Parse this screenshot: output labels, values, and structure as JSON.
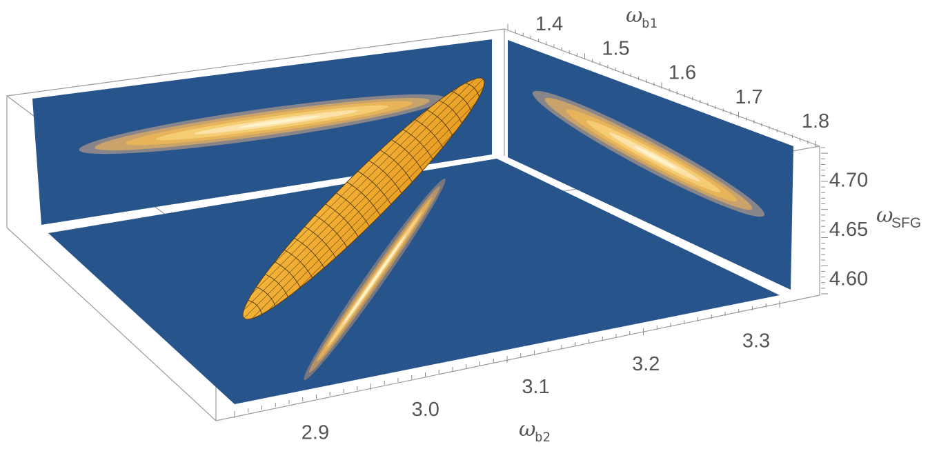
{
  "chart_data": {
    "type": "surface-3d",
    "axes": {
      "omega_b1": {
        "symbol": "ω",
        "subscript": "b1",
        "ticks": [
          "1.4",
          "1.5",
          "1.6",
          "1.7",
          "1.8"
        ],
        "range": [
          1.4,
          1.8
        ]
      },
      "omega_b2": {
        "symbol": "ω",
        "subscript": "b2",
        "ticks": [
          "2.9",
          "3.0",
          "3.1",
          "3.2",
          "3.3"
        ],
        "range": [
          2.88,
          3.32
        ]
      },
      "omega_SFG": {
        "symbol": "ω",
        "subscript": "SFG",
        "ticks": [
          "4.60",
          "4.65",
          "4.70"
        ],
        "range": [
          4.59,
          4.72
        ]
      }
    },
    "surface": {
      "description": "isosurface ellipsoid",
      "color": "#F2A52B",
      "center": {
        "omega_b1": 1.6,
        "omega_b2": 3.05,
        "omega_SFG": 4.65
      }
    },
    "projections": {
      "background_color": "#27548A",
      "peak_color": "#FFF3CC",
      "contour_colors": [
        "#9A8E8A",
        "#C9A36A",
        "#E8B45A",
        "#F6CC73",
        "#FCE2A8"
      ],
      "planes": [
        "omega_b1-omega_b2 (floor)",
        "omega_b1-omega_SFG (back wall)",
        "omega_b2-omega_SFG (side wall)"
      ]
    },
    "grid": false
  }
}
